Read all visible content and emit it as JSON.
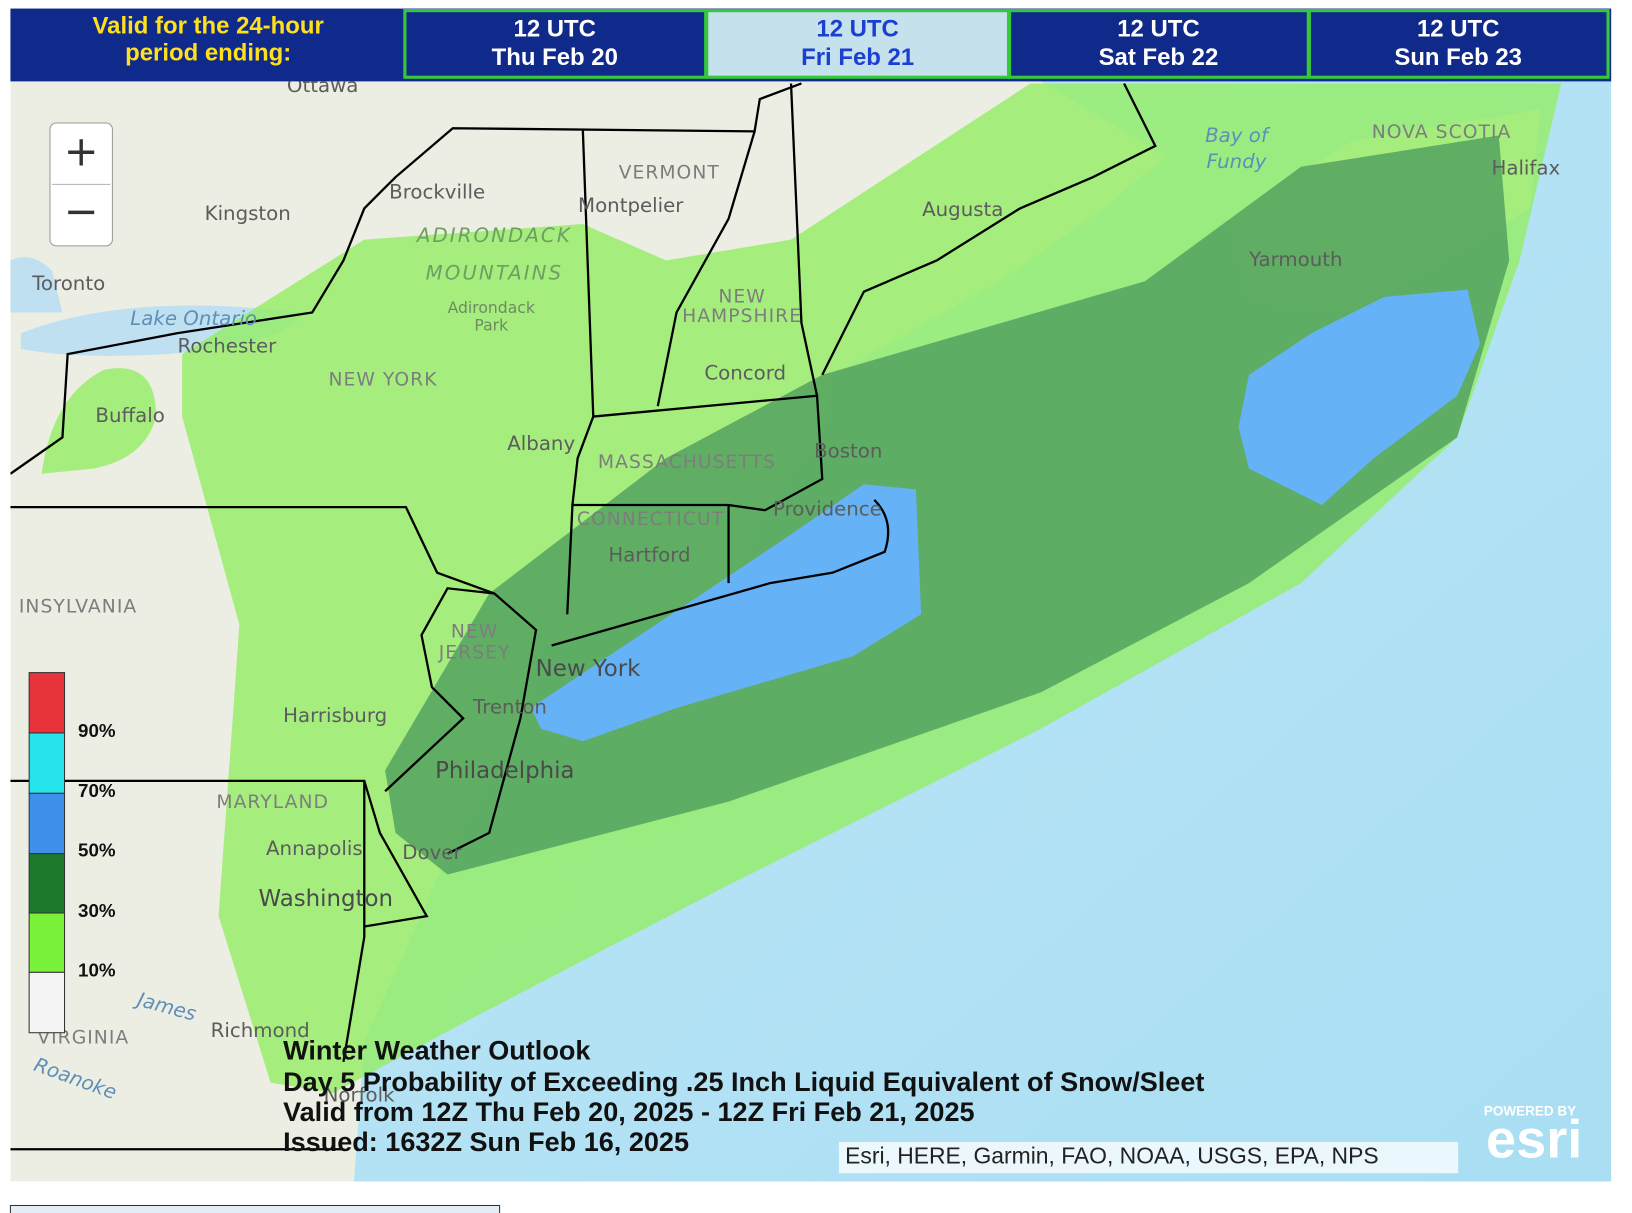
{
  "header": {
    "label_lines": [
      "Valid for the 24-hour",
      "period ending:"
    ]
  },
  "tabs": [
    {
      "time": "12 UTC",
      "date": "Thu Feb 20"
    },
    {
      "time": "12 UTC",
      "date": "Fri Feb 21"
    },
    {
      "time": "12 UTC",
      "date": "Sat Feb 22"
    },
    {
      "time": "12 UTC",
      "date": "Sun Feb 23"
    }
  ],
  "zoom": {
    "in": "+",
    "out": "−"
  },
  "map_labels": [
    "Ottawa",
    "Brockville",
    "Kingston",
    "Toronto",
    "Lake Ontario",
    "Rochester",
    "Buffalo",
    "ADIRONDACK",
    "MOUNTAINS",
    "Adirondack",
    "Park",
    "NEW YORK",
    "Albany",
    "VERMONT",
    "Montpelier",
    "NEW",
    "HAMPSHIRE",
    "Concord",
    "Augusta",
    "MASSACHUSETTS",
    "Boston",
    "CONNECTICUT",
    "Hartford",
    "Providence",
    "NEW",
    "JERSEY",
    "New York",
    "Trenton",
    "Harrisburg",
    "Philadelphia",
    "MARYLAND",
    "Annapolis",
    "Dover",
    "Washington",
    "Richmond",
    "VIRGINIA",
    "Roanoke",
    "Norfolk",
    "INSYLVANIA",
    "Yarmouth",
    "Halifax",
    "NOVA SCOTIA",
    "Bay of",
    "Fundy",
    "James"
  ],
  "legend": {
    "labels": [
      "90%",
      "70%",
      "50%",
      "30%",
      "10%"
    ]
  },
  "caption": {
    "lines": [
      "Winter Weather Outlook",
      "Day 5 Probability of Exceeding .25 Inch Liquid Equivalent of Snow/Sleet",
      "Valid from 12Z Thu Feb 20, 2025 - 12Z Fri Feb 21, 2025",
      "Issued: 1632Z Sun Feb 16, 2025"
    ]
  },
  "attribution": "Esri, HERE, Garmin, FAO, NOAA, USGS, EPA, NPS",
  "logo": {
    "powered_by": "POWERED BY",
    "brand": "esri"
  }
}
